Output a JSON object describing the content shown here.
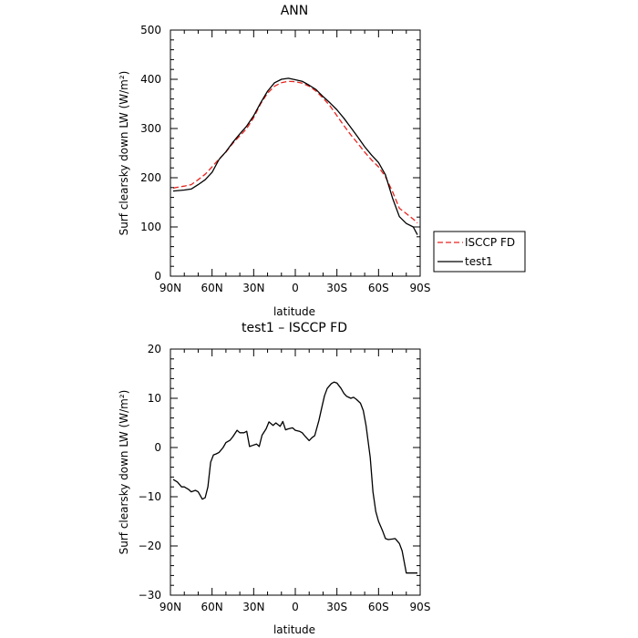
{
  "chart_data": [
    {
      "type": "line",
      "title": "ANN",
      "xlabel": "latitude",
      "ylabel": "Surf clearsky down LW (W/m²)",
      "x_ticks": [
        90,
        60,
        30,
        0,
        -30,
        -60,
        -90
      ],
      "x_tick_labels": [
        "90N",
        "60N",
        "30N",
        "0",
        "30S",
        "60S",
        "90S"
      ],
      "xlim": [
        90,
        -90
      ],
      "y_ticks": [
        0,
        100,
        200,
        300,
        400,
        500
      ],
      "y_tick_labels": [
        "0",
        "100",
        "200",
        "300",
        "400",
        "500"
      ],
      "ylim": [
        0,
        500
      ],
      "legend_position": "right",
      "series": [
        {
          "name": "ISCCP FD",
          "color": "#e8231e",
          "dash": "dashed",
          "x": [
            88,
            80,
            75,
            70,
            65,
            60,
            55,
            50,
            45,
            40,
            35,
            30,
            25,
            20,
            15,
            10,
            5,
            0,
            -5,
            -10,
            -15,
            -20,
            -25,
            -30,
            -35,
            -40,
            -45,
            -50,
            -55,
            -60,
            -65,
            -70,
            -75,
            -80,
            -85,
            -88
          ],
          "y": [
            179,
            183,
            186,
            196,
            207,
            222,
            238,
            252,
            270,
            285,
            300,
            322,
            350,
            372,
            386,
            393,
            396,
            395,
            392,
            386,
            376,
            362,
            346,
            326,
            306,
            287,
            270,
            252,
            236,
            222,
            202,
            172,
            138,
            127,
            116,
            108
          ]
        },
        {
          "name": "test1",
          "color": "#000000",
          "dash": "solid",
          "x": [
            88,
            80,
            75,
            70,
            65,
            60,
            55,
            50,
            45,
            40,
            35,
            30,
            25,
            20,
            15,
            10,
            5,
            0,
            -5,
            -10,
            -15,
            -20,
            -25,
            -30,
            -35,
            -40,
            -45,
            -50,
            -55,
            -60,
            -65,
            -70,
            -75,
            -80,
            -85,
            -88
          ],
          "y": [
            173,
            175,
            177,
            186,
            196,
            211,
            237,
            253,
            272,
            289,
            305,
            326,
            352,
            376,
            393,
            400,
            402,
            399,
            396,
            388,
            379,
            365,
            352,
            338,
            321,
            302,
            283,
            263,
            246,
            231,
            206,
            159,
            121,
            107,
            100,
            84
          ]
        }
      ]
    },
    {
      "type": "line",
      "title": "test1 – ISCCP FD",
      "xlabel": "latitude",
      "ylabel": "Surf clearsky down LW (W/m²)",
      "x_ticks": [
        90,
        60,
        30,
        0,
        -30,
        -60,
        -90
      ],
      "x_tick_labels": [
        "90N",
        "60N",
        "30N",
        "0",
        "30S",
        "60S",
        "90S"
      ],
      "xlim": [
        90,
        -90
      ],
      "y_ticks": [
        -30,
        -20,
        -10,
        0,
        10,
        20
      ],
      "y_tick_labels": [
        "−30",
        "−20",
        "−10",
        "0",
        "10",
        "20"
      ],
      "ylim": [
        -30,
        20
      ],
      "series": [
        {
          "color": "#000000",
          "dash": "solid",
          "x": [
            88,
            85,
            82,
            80,
            77,
            75,
            72,
            70,
            67,
            65,
            63,
            61,
            59,
            57,
            55,
            52,
            50,
            47,
            45,
            42,
            40,
            37,
            35,
            33,
            31,
            28,
            26,
            24,
            21,
            19,
            16,
            14,
            11,
            9,
            7,
            5,
            2,
            0,
            -3,
            -5,
            -7,
            -10,
            -12,
            -14,
            -17,
            -19,
            -21,
            -23,
            -26,
            -28,
            -30,
            -33,
            -35,
            -37,
            -40,
            -42,
            -44,
            -47,
            -49,
            -51,
            -54,
            -56,
            -58,
            -60,
            -63,
            -65,
            -67,
            -70,
            -72,
            -75,
            -77,
            -80,
            -82,
            -84,
            -86,
            -88
          ],
          "y": [
            -6.5,
            -7,
            -8,
            -8,
            -8.5,
            -9,
            -8.7,
            -9,
            -10.5,
            -10.2,
            -8,
            -3,
            -1.5,
            -1.3,
            -1,
            0,
            1,
            1.5,
            2.2,
            3.5,
            3,
            3,
            3.3,
            0.2,
            0.4,
            0.7,
            0.2,
            2.5,
            3.8,
            5.2,
            4.5,
            5,
            4.3,
            5.3,
            3.6,
            3.8,
            4,
            3.5,
            3.3,
            3,
            2.3,
            1.4,
            2,
            2.4,
            5.5,
            8,
            10.5,
            12,
            13,
            13.3,
            13.1,
            12,
            11,
            10.4,
            10,
            10.2,
            9.8,
            9,
            7.5,
            4.5,
            -2,
            -9,
            -13,
            -15,
            -17,
            -18.5,
            -18.7,
            -18.6,
            -18.5,
            -19.5,
            -21,
            -25.5,
            -25.5,
            -25.5,
            -25.5,
            -25.5
          ]
        }
      ]
    }
  ]
}
